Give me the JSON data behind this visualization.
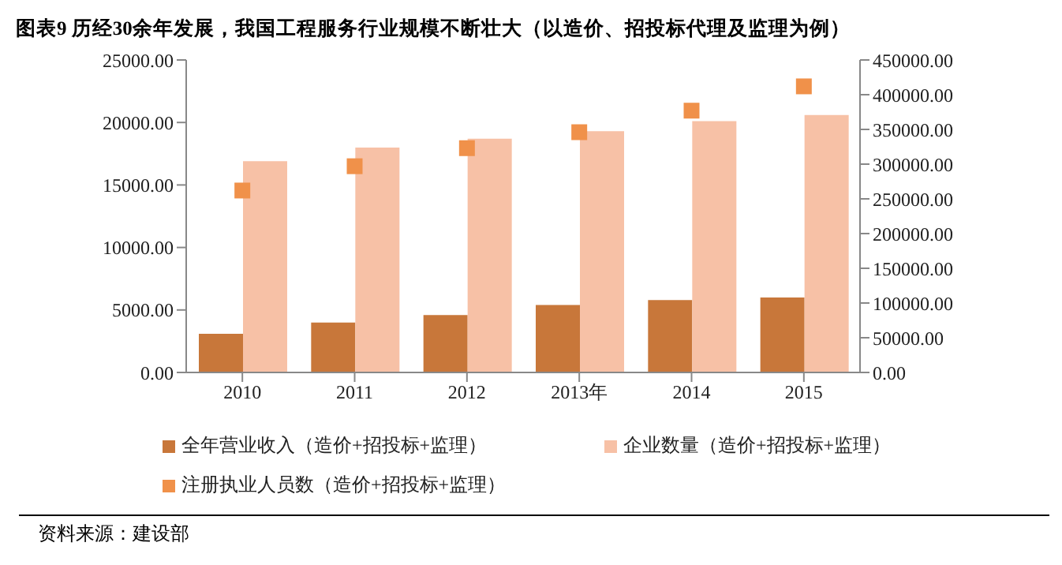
{
  "chart_data": {
    "type": "bar",
    "title": "图表9 历经30余年发展，我国工程服务行业规模不断壮大（以造价、招投标代理及监理为例）",
    "categories": [
      "2010",
      "2011",
      "2012",
      "2013年",
      "2014",
      "2015"
    ],
    "series": [
      {
        "name": "全年营业收入（造价+招投标+监理）",
        "color": "#c8773a",
        "values": [
          3100,
          4000,
          4600,
          5400,
          5800,
          6000
        ]
      },
      {
        "name": "企业数量（造价+招投标+监理）",
        "color": "#f7c1a6",
        "values": [
          16900,
          18000,
          18700,
          19300,
          20100,
          20600
        ]
      },
      {
        "name": "注册执业人员数（造价+招投标+监理）",
        "type": "scatter",
        "axis": "y2",
        "marker": "square",
        "color": "#f0914a",
        "values": [
          262000,
          297000,
          323000,
          346000,
          377000,
          412000
        ]
      }
    ],
    "ylim": [
      0,
      25000
    ],
    "yticks": [
      {
        "value": 0,
        "label": "0.00"
      },
      {
        "value": 5000,
        "label": "5000.00"
      },
      {
        "value": 10000,
        "label": "10000.00"
      },
      {
        "value": 15000,
        "label": "15000.00"
      },
      {
        "value": 20000,
        "label": "20000.00"
      },
      {
        "value": 25000,
        "label": "25000.00"
      }
    ],
    "y2lim": [
      0,
      450000
    ],
    "y2ticks": [
      {
        "value": 0,
        "label": "0.00"
      },
      {
        "value": 50000,
        "label": "50000.00"
      },
      {
        "value": 100000,
        "label": "100000.00"
      },
      {
        "value": 150000,
        "label": "150000.00"
      },
      {
        "value": 200000,
        "label": "200000.00"
      },
      {
        "value": 250000,
        "label": "250000.00"
      },
      {
        "value": 300000,
        "label": "300000.00"
      },
      {
        "value": 350000,
        "label": "350000.00"
      },
      {
        "value": 400000,
        "label": "400000.00"
      },
      {
        "value": 450000,
        "label": "450000.00"
      }
    ],
    "grid": false,
    "legend": "bottom",
    "annotations": [
      "资料来源：建设部"
    ]
  }
}
